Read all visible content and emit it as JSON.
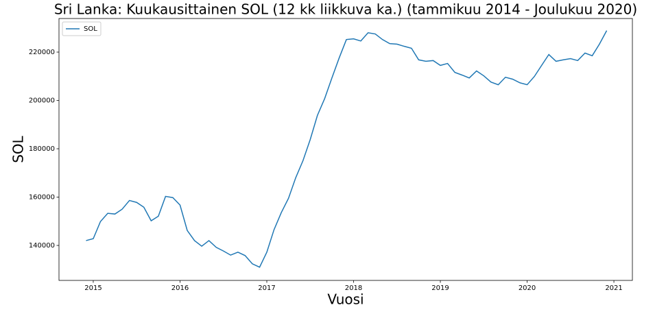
{
  "chart_data": {
    "type": "line",
    "title": "Sri Lanka: Kuukausittainen SOL (12 kk liikkuva ka.) (tammikuu 2014 - Joulukuu 2020)",
    "xlabel": "Vuosi",
    "ylabel": "SOL",
    "x": [
      2014.917,
      2015.0,
      2015.083,
      2015.167,
      2015.25,
      2015.333,
      2015.417,
      2015.5,
      2015.583,
      2015.667,
      2015.75,
      2015.833,
      2015.917,
      2016.0,
      2016.083,
      2016.167,
      2016.25,
      2016.333,
      2016.417,
      2016.5,
      2016.583,
      2016.667,
      2016.75,
      2016.833,
      2016.917,
      2017.0,
      2017.083,
      2017.167,
      2017.25,
      2017.333,
      2017.417,
      2017.5,
      2017.583,
      2017.667,
      2017.75,
      2017.833,
      2017.917,
      2018.0,
      2018.083,
      2018.167,
      2018.25,
      2018.333,
      2018.417,
      2018.5,
      2018.583,
      2018.667,
      2018.75,
      2018.833,
      2018.917,
      2019.0,
      2019.083,
      2019.167,
      2019.25,
      2019.333,
      2019.417,
      2019.5,
      2019.583,
      2019.667,
      2019.75,
      2019.833,
      2019.917,
      2020.0,
      2020.083,
      2020.167,
      2020.25,
      2020.333,
      2020.417,
      2020.5,
      2020.583,
      2020.667,
      2020.75,
      2020.833,
      2020.917
    ],
    "series": [
      {
        "name": "SOL",
        "color": "#1f77b4",
        "values": [
          142000,
          142800,
          149900,
          153300,
          153000,
          155000,
          158600,
          157800,
          155800,
          150200,
          152100,
          160300,
          159800,
          156700,
          146200,
          142000,
          139700,
          142000,
          139200,
          137700,
          136000,
          137200,
          135800,
          132400,
          131000,
          137200,
          146500,
          153600,
          159500,
          168000,
          175100,
          183800,
          193800,
          200800,
          209300,
          217500,
          225200,
          225500,
          224600,
          228000,
          227500,
          225200,
          223500,
          223300,
          222400,
          221600,
          216800,
          216200,
          216500,
          214500,
          215300,
          211600,
          210500,
          209300,
          212200,
          210200,
          207600,
          206500,
          209600,
          208800,
          207300,
          206500,
          209900,
          214500,
          219000,
          216200,
          216800,
          217300,
          216500,
          219600,
          218500,
          223300,
          228900
        ]
      }
    ],
    "xlim": [
      2014.605,
      2021.213
    ],
    "ylim": [
      125530,
      233900
    ],
    "xticks": [
      2015,
      2016,
      2017,
      2018,
      2019,
      2020,
      2021
    ],
    "yticks": [
      140000,
      160000,
      180000,
      200000,
      220000
    ],
    "legend": "upper left",
    "grid": false
  }
}
